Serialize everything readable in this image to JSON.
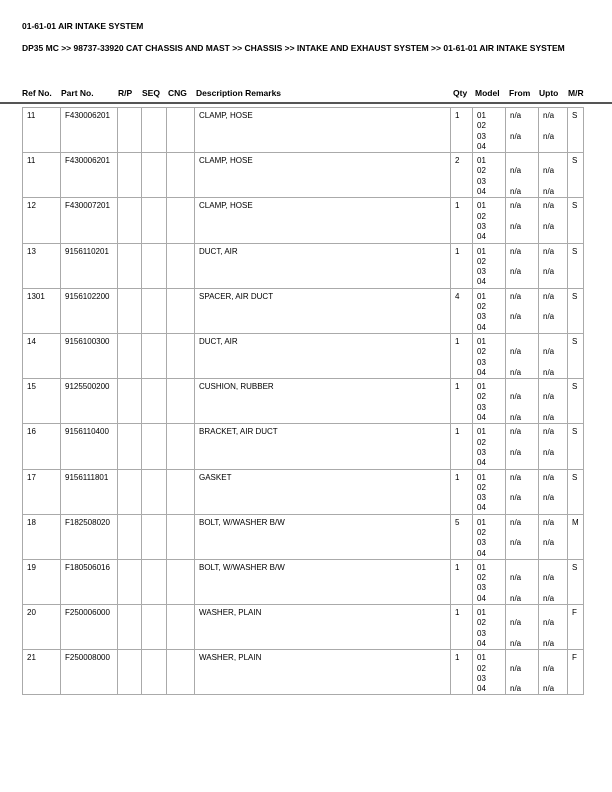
{
  "title": "01-61-01 AIR INTAKE SYSTEM",
  "breadcrumb": "DP35 MC >> 98737-33920 CAT CHASSIS AND MAST >> CHASSIS >> INTAKE AND EXHAUST SYSTEM >> 01-61-01 AIR INTAKE SYSTEM",
  "columns": [
    "Ref No.",
    "Part No.",
    "R/P",
    "SEQ",
    "CNG",
    "Description Remarks",
    "Qty",
    "Model",
    "From",
    "Upto",
    "M/R"
  ],
  "rows": [
    {
      "ref": "11",
      "part": "F430006201",
      "rp": "",
      "seq": "",
      "cng": "",
      "desc": "CLAMP, HOSE",
      "qty": "1",
      "model": [
        "01",
        "02",
        "03",
        "04"
      ],
      "from": [
        "n/a",
        "",
        "n/a",
        ""
      ],
      "upto": [
        "n/a",
        "",
        "n/a",
        ""
      ],
      "mr": "S"
    },
    {
      "ref": "11",
      "part": "F430006201",
      "rp": "",
      "seq": "",
      "cng": "",
      "desc": "CLAMP, HOSE",
      "qty": "2",
      "model": [
        "01",
        "02",
        "03",
        "04"
      ],
      "from": [
        "",
        "n/a",
        "",
        "n/a"
      ],
      "upto": [
        "",
        "n/a",
        "",
        "n/a"
      ],
      "mr": "S"
    },
    {
      "ref": "12",
      "part": "F430007201",
      "rp": "",
      "seq": "",
      "cng": "",
      "desc": "CLAMP, HOSE",
      "qty": "1",
      "model": [
        "01",
        "02",
        "03",
        "04"
      ],
      "from": [
        "n/a",
        "",
        "n/a",
        ""
      ],
      "upto": [
        "n/a",
        "",
        "n/a",
        ""
      ],
      "mr": "S"
    },
    {
      "ref": "13",
      "part": "9156110201",
      "rp": "",
      "seq": "",
      "cng": "",
      "desc": "DUCT, AIR",
      "qty": "1",
      "model": [
        "01",
        "02",
        "03",
        "04"
      ],
      "from": [
        "n/a",
        "",
        "n/a",
        ""
      ],
      "upto": [
        "n/a",
        "",
        "n/a",
        ""
      ],
      "mr": "S"
    },
    {
      "ref": "1301",
      "part": "9156102200",
      "rp": "",
      "seq": "",
      "cng": "",
      "desc": "SPACER, AIR DUCT",
      "qty": "4",
      "model": [
        "01",
        "02",
        "03",
        "04"
      ],
      "from": [
        "n/a",
        "",
        "n/a",
        ""
      ],
      "upto": [
        "n/a",
        "",
        "n/a",
        ""
      ],
      "mr": "S"
    },
    {
      "ref": "14",
      "part": "9156100300",
      "rp": "",
      "seq": "",
      "cng": "",
      "desc": "DUCT, AIR",
      "qty": "1",
      "model": [
        "01",
        "02",
        "03",
        "04"
      ],
      "from": [
        "",
        "n/a",
        "",
        "n/a"
      ],
      "upto": [
        "",
        "n/a",
        "",
        "n/a"
      ],
      "mr": "S"
    },
    {
      "ref": "15",
      "part": "9125500200",
      "rp": "",
      "seq": "",
      "cng": "",
      "desc": "CUSHION, RUBBER",
      "qty": "1",
      "model": [
        "01",
        "02",
        "03",
        "04"
      ],
      "from": [
        "",
        "n/a",
        "",
        "n/a"
      ],
      "upto": [
        "",
        "n/a",
        "",
        "n/a"
      ],
      "mr": "S"
    },
    {
      "ref": "16",
      "part": "9156110400",
      "rp": "",
      "seq": "",
      "cng": "",
      "desc": "BRACKET, AIR DUCT",
      "qty": "1",
      "model": [
        "01",
        "02",
        "03",
        "04"
      ],
      "from": [
        "n/a",
        "",
        "n/a",
        ""
      ],
      "upto": [
        "n/a",
        "",
        "n/a",
        ""
      ],
      "mr": "S"
    },
    {
      "ref": "17",
      "part": "9156111801",
      "rp": "",
      "seq": "",
      "cng": "",
      "desc": "GASKET",
      "qty": "1",
      "model": [
        "01",
        "02",
        "03",
        "04"
      ],
      "from": [
        "n/a",
        "",
        "n/a",
        ""
      ],
      "upto": [
        "n/a",
        "",
        "n/a",
        ""
      ],
      "mr": "S"
    },
    {
      "ref": "18",
      "part": "F182508020",
      "rp": "",
      "seq": "",
      "cng": "",
      "desc": "BOLT, W/WASHER B/W",
      "qty": "5",
      "model": [
        "01",
        "02",
        "03",
        "04"
      ],
      "from": [
        "n/a",
        "",
        "n/a",
        ""
      ],
      "upto": [
        "n/a",
        "",
        "n/a",
        ""
      ],
      "mr": "M"
    },
    {
      "ref": "19",
      "part": "F180506016",
      "rp": "",
      "seq": "",
      "cng": "",
      "desc": "BOLT, W/WASHER B/W",
      "qty": "1",
      "model": [
        "01",
        "02",
        "03",
        "04"
      ],
      "from": [
        "",
        "n/a",
        "",
        "n/a"
      ],
      "upto": [
        "",
        "n/a",
        "",
        "n/a"
      ],
      "mr": "S"
    },
    {
      "ref": "20",
      "part": "F250006000",
      "rp": "",
      "seq": "",
      "cng": "",
      "desc": "WASHER, PLAIN",
      "qty": "1",
      "model": [
        "01",
        "02",
        "03",
        "04"
      ],
      "from": [
        "",
        "n/a",
        "",
        "n/a"
      ],
      "upto": [
        "",
        "n/a",
        "",
        "n/a"
      ],
      "mr": "F"
    },
    {
      "ref": "21",
      "part": "F250008000",
      "rp": "",
      "seq": "",
      "cng": "",
      "desc": "WASHER, PLAIN",
      "qty": "1",
      "model": [
        "01",
        "02",
        "03",
        "04"
      ],
      "from": [
        "",
        "n/a",
        "",
        "n/a"
      ],
      "upto": [
        "",
        "n/a",
        "",
        "n/a"
      ],
      "mr": "F"
    }
  ]
}
